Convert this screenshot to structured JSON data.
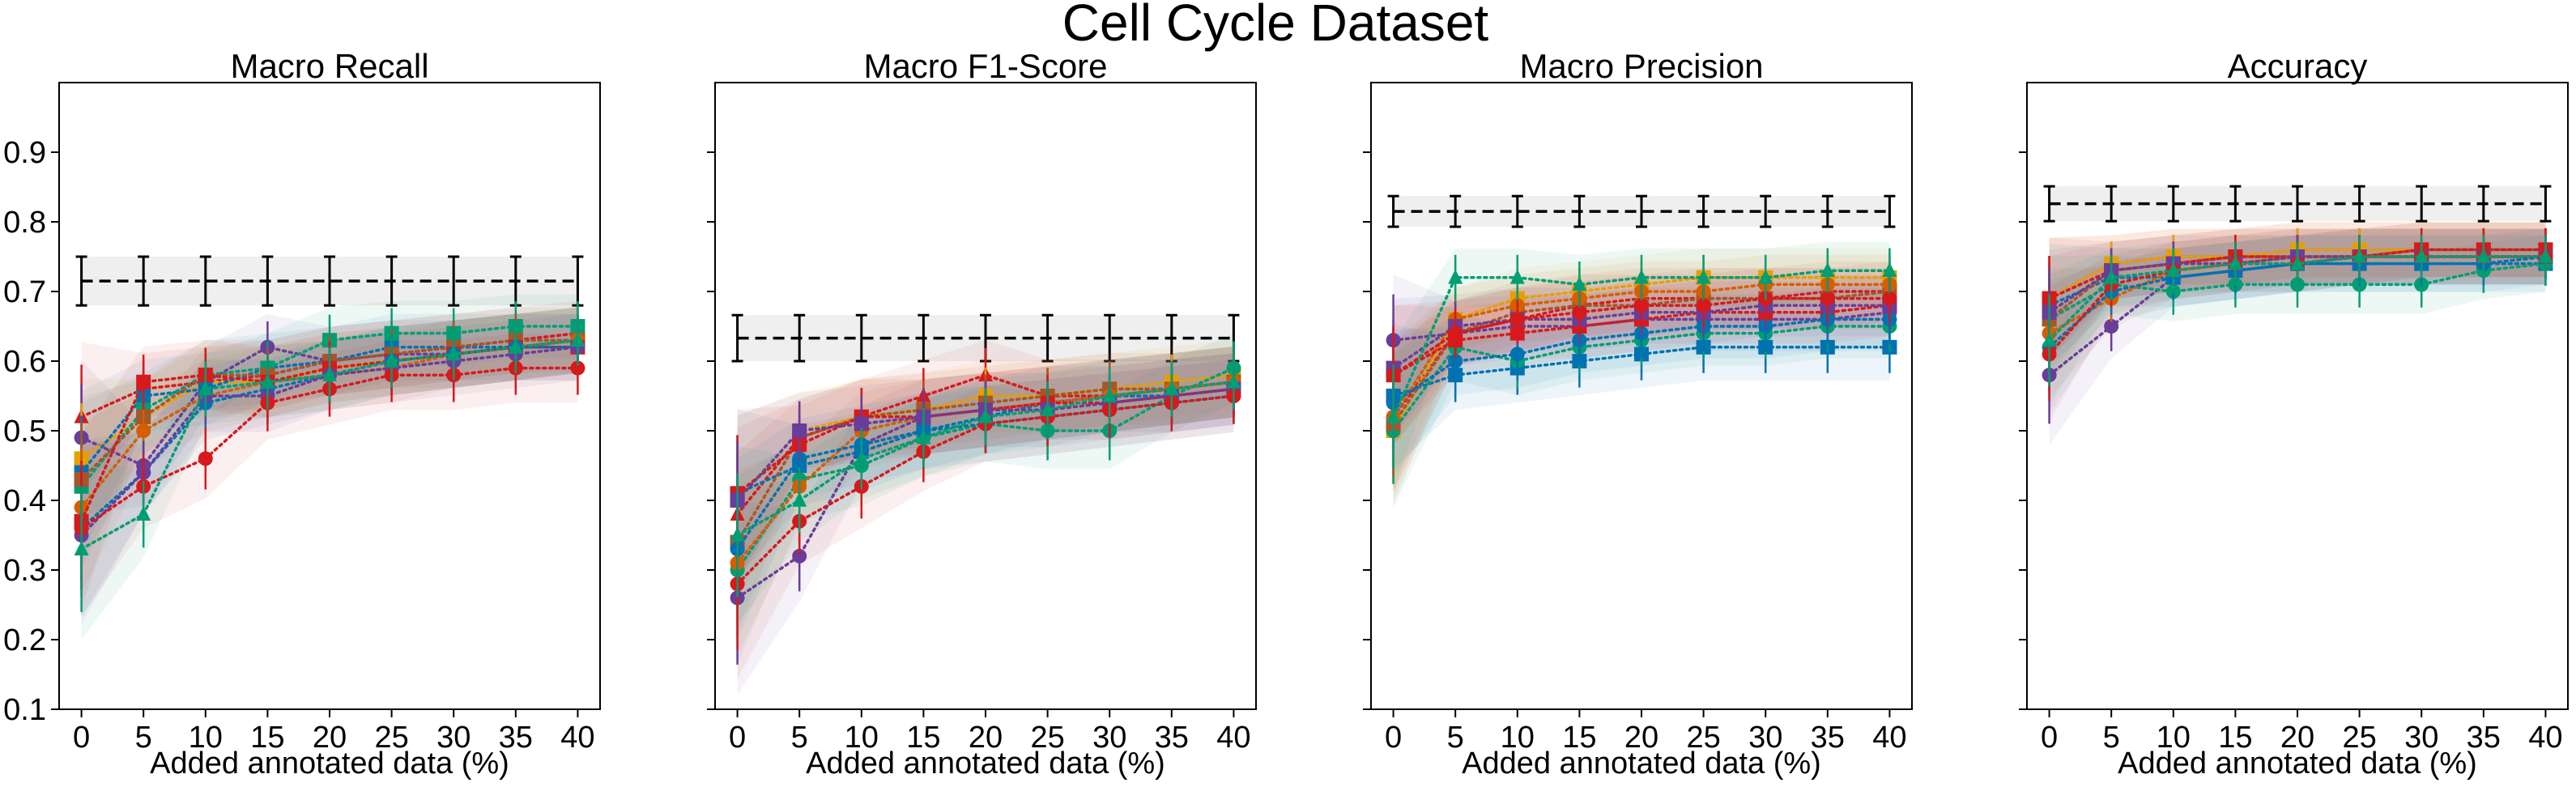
{
  "figure_title": "Cell Cycle Dataset",
  "chart_data": [
    {
      "type": "line",
      "title": "Macro Recall",
      "xlabel": "Added annotated data (%)",
      "ylabel": "",
      "x": [
        0,
        5,
        10,
        15,
        20,
        25,
        30,
        35,
        40
      ],
      "x_ticks": [
        "0",
        "5",
        "10",
        "15",
        "20",
        "25",
        "30",
        "35",
        "40"
      ],
      "ylim": [
        0.1,
        1.0
      ],
      "y_ticks": [
        "0.1",
        "0.2",
        "0.3",
        "0.4",
        "0.5",
        "0.6",
        "0.7",
        "0.8",
        "0.9"
      ],
      "baseline": {
        "value": 0.715,
        "err": 0.035
      },
      "series": [
        {
          "color": "#d7191c",
          "marker": "triangle",
          "values": [
            0.52,
            0.56,
            0.57,
            0.58,
            0.6,
            0.61,
            0.62,
            0.63,
            0.64
          ]
        },
        {
          "color": "#6a3d9a",
          "marker": "circle",
          "values": [
            0.49,
            0.45,
            0.57,
            0.62,
            0.6,
            0.61,
            0.61,
            0.62,
            0.63
          ]
        },
        {
          "color": "#e69f00",
          "marker": "square",
          "values": [
            0.46,
            0.52,
            0.57,
            0.57,
            0.59,
            0.6,
            0.61,
            0.62,
            0.63
          ]
        },
        {
          "color": "#0072b2",
          "marker": "square",
          "values": [
            0.44,
            0.55,
            0.56,
            0.59,
            0.6,
            0.62,
            0.62,
            0.62,
            0.63
          ]
        },
        {
          "color": "#009e73",
          "marker": "square",
          "values": [
            0.42,
            0.53,
            0.58,
            0.59,
            0.63,
            0.64,
            0.64,
            0.65,
            0.65
          ]
        },
        {
          "color": "#a65628",
          "marker": "square",
          "values": [
            0.43,
            0.52,
            0.58,
            0.58,
            0.6,
            0.61,
            0.62,
            0.63,
            0.63
          ]
        },
        {
          "color": "#d55e00",
          "marker": "circle",
          "values": [
            0.39,
            0.5,
            0.55,
            0.57,
            0.58,
            0.59,
            0.61,
            0.62,
            0.63
          ]
        },
        {
          "color": "#d7191c",
          "marker": "square",
          "values": [
            0.37,
            0.57,
            0.58,
            0.57,
            0.59,
            0.6,
            0.61,
            0.62,
            0.62
          ]
        },
        {
          "color": "#0072b2",
          "marker": "circle",
          "values": [
            0.36,
            0.44,
            0.54,
            0.56,
            0.58,
            0.6,
            0.61,
            0.62,
            0.62
          ]
        },
        {
          "color": "#6a3d9a",
          "marker": "circle",
          "values": [
            0.35,
            0.44,
            0.55,
            0.55,
            0.58,
            0.59,
            0.6,
            0.61,
            0.62
          ]
        },
        {
          "color": "#d7191c",
          "marker": "circle",
          "values": [
            0.36,
            0.42,
            0.46,
            0.54,
            0.56,
            0.58,
            0.58,
            0.59,
            0.59
          ]
        },
        {
          "color": "#009e73",
          "marker": "triangle",
          "values": [
            0.33,
            0.38,
            0.56,
            0.57,
            0.58,
            0.6,
            0.61,
            0.62,
            0.63
          ]
        }
      ]
    },
    {
      "type": "line",
      "title": "Macro F1-Score",
      "xlabel": "Added annotated data (%)",
      "ylabel": "",
      "x": [
        0,
        5,
        10,
        15,
        20,
        25,
        30,
        35,
        40
      ],
      "x_ticks": [
        "0",
        "5",
        "10",
        "15",
        "20",
        "25",
        "30",
        "35",
        "40"
      ],
      "ylim": [
        0.1,
        1.0
      ],
      "baseline": {
        "value": 0.633,
        "err": 0.033
      },
      "series": [
        {
          "color": "#d7191c",
          "marker": "triangle",
          "values": [
            0.38,
            0.49,
            0.52,
            0.55,
            0.58,
            0.55,
            0.55,
            0.56,
            0.57
          ]
        },
        {
          "color": "#6a3d9a",
          "marker": "circle",
          "values": [
            0.26,
            0.32,
            0.48,
            0.52,
            0.53,
            0.54,
            0.55,
            0.56,
            0.57
          ]
        },
        {
          "color": "#e69f00",
          "marker": "square",
          "values": [
            0.4,
            0.5,
            0.52,
            0.53,
            0.55,
            0.55,
            0.56,
            0.57,
            0.58
          ]
        },
        {
          "color": "#0072b2",
          "marker": "square",
          "values": [
            0.41,
            0.45,
            0.47,
            0.5,
            0.52,
            0.54,
            0.55,
            0.55,
            0.56
          ]
        },
        {
          "color": "#009e73",
          "marker": "circle",
          "values": [
            0.3,
            0.43,
            0.45,
            0.49,
            0.51,
            0.5,
            0.5,
            0.55,
            0.59
          ]
        },
        {
          "color": "#a65628",
          "marker": "square",
          "values": [
            0.34,
            0.49,
            0.52,
            0.53,
            0.54,
            0.55,
            0.56,
            0.56,
            0.57
          ]
        },
        {
          "color": "#d55e00",
          "marker": "circle",
          "values": [
            0.31,
            0.42,
            0.5,
            0.52,
            0.53,
            0.54,
            0.55,
            0.56,
            0.57
          ]
        },
        {
          "color": "#d7191c",
          "marker": "square",
          "values": [
            0.41,
            0.48,
            0.52,
            0.52,
            0.53,
            0.54,
            0.54,
            0.55,
            0.56
          ]
        },
        {
          "color": "#0072b2",
          "marker": "circle",
          "values": [
            0.33,
            0.46,
            0.48,
            0.5,
            0.51,
            0.52,
            0.53,
            0.54,
            0.55
          ]
        },
        {
          "color": "#6a3d9a",
          "marker": "square",
          "values": [
            0.4,
            0.5,
            0.51,
            0.52,
            0.53,
            0.53,
            0.54,
            0.55,
            0.56
          ]
        },
        {
          "color": "#d7191c",
          "marker": "circle",
          "values": [
            0.28,
            0.37,
            0.42,
            0.47,
            0.51,
            0.52,
            0.53,
            0.54,
            0.55
          ]
        },
        {
          "color": "#009e73",
          "marker": "triangle",
          "values": [
            0.35,
            0.4,
            0.46,
            0.49,
            0.52,
            0.53,
            0.55,
            0.56,
            0.57
          ]
        }
      ]
    },
    {
      "type": "line",
      "title": "Macro Precision",
      "xlabel": "Added annotated data (%)",
      "ylabel": "",
      "x": [
        0,
        5,
        10,
        15,
        20,
        25,
        30,
        35,
        40
      ],
      "x_ticks": [
        "0",
        "5",
        "10",
        "15",
        "20",
        "25",
        "30",
        "35",
        "40"
      ],
      "ylim": [
        0.1,
        1.0
      ],
      "baseline": {
        "value": 0.815,
        "err": 0.022
      },
      "series": [
        {
          "color": "#d7191c",
          "marker": "triangle",
          "values": [
            0.52,
            0.64,
            0.66,
            0.68,
            0.69,
            0.69,
            0.69,
            0.7,
            0.7
          ]
        },
        {
          "color": "#6a3d9a",
          "marker": "circle",
          "values": [
            0.63,
            0.64,
            0.65,
            0.65,
            0.66,
            0.66,
            0.66,
            0.66,
            0.67
          ]
        },
        {
          "color": "#e69f00",
          "marker": "square",
          "values": [
            0.5,
            0.66,
            0.69,
            0.7,
            0.71,
            0.72,
            0.72,
            0.72,
            0.72
          ]
        },
        {
          "color": "#0072b2",
          "marker": "square",
          "values": [
            0.55,
            0.58,
            0.59,
            0.6,
            0.61,
            0.62,
            0.62,
            0.62,
            0.62
          ]
        },
        {
          "color": "#009e73",
          "marker": "circle",
          "values": [
            0.5,
            0.62,
            0.6,
            0.62,
            0.63,
            0.64,
            0.64,
            0.65,
            0.65
          ]
        },
        {
          "color": "#a65628",
          "marker": "square",
          "values": [
            0.51,
            0.64,
            0.67,
            0.68,
            0.68,
            0.69,
            0.69,
            0.69,
            0.7
          ]
        },
        {
          "color": "#d55e00",
          "marker": "circle",
          "values": [
            0.52,
            0.66,
            0.68,
            0.69,
            0.7,
            0.7,
            0.71,
            0.71,
            0.71
          ]
        },
        {
          "color": "#d7191c",
          "marker": "square",
          "values": [
            0.58,
            0.63,
            0.64,
            0.65,
            0.66,
            0.67,
            0.67,
            0.67,
            0.68
          ]
        },
        {
          "color": "#0072b2",
          "marker": "circle",
          "values": [
            0.54,
            0.6,
            0.61,
            0.63,
            0.64,
            0.65,
            0.65,
            0.66,
            0.66
          ]
        },
        {
          "color": "#6a3d9a",
          "marker": "square",
          "values": [
            0.59,
            0.65,
            0.66,
            0.66,
            0.67,
            0.67,
            0.68,
            0.68,
            0.68
          ]
        },
        {
          "color": "#d7191c",
          "marker": "circle",
          "values": [
            0.58,
            0.64,
            0.66,
            0.67,
            0.68,
            0.68,
            0.69,
            0.69,
            0.69
          ]
        },
        {
          "color": "#009e73",
          "marker": "triangle",
          "values": [
            0.52,
            0.72,
            0.72,
            0.71,
            0.72,
            0.72,
            0.72,
            0.73,
            0.73
          ]
        }
      ]
    },
    {
      "type": "line",
      "title": "Accuracy",
      "xlabel": "Added annotated data (%)",
      "ylabel": "",
      "x": [
        0,
        5,
        10,
        15,
        20,
        25,
        30,
        35,
        40
      ],
      "x_ticks": [
        "0",
        "5",
        "10",
        "15",
        "20",
        "25",
        "30",
        "35",
        "40"
      ],
      "ylim": [
        0.1,
        1.0
      ],
      "baseline": {
        "value": 0.826,
        "err": 0.025
      },
      "series": [
        {
          "color": "#d7191c",
          "marker": "triangle",
          "values": [
            0.69,
            0.74,
            0.75,
            0.75,
            0.76,
            0.76,
            0.76,
            0.76,
            0.76
          ]
        },
        {
          "color": "#6a3d9a",
          "marker": "circle",
          "values": [
            0.58,
            0.65,
            0.72,
            0.73,
            0.74,
            0.75,
            0.75,
            0.75,
            0.75
          ]
        },
        {
          "color": "#e69f00",
          "marker": "square",
          "values": [
            0.69,
            0.74,
            0.75,
            0.75,
            0.76,
            0.76,
            0.76,
            0.76,
            0.76
          ]
        },
        {
          "color": "#0072b2",
          "marker": "square",
          "values": [
            0.68,
            0.72,
            0.72,
            0.73,
            0.74,
            0.74,
            0.74,
            0.74,
            0.74
          ]
        },
        {
          "color": "#009e73",
          "marker": "circle",
          "values": [
            0.66,
            0.71,
            0.7,
            0.71,
            0.71,
            0.71,
            0.71,
            0.73,
            0.74
          ]
        },
        {
          "color": "#a65628",
          "marker": "square",
          "values": [
            0.66,
            0.73,
            0.74,
            0.75,
            0.75,
            0.75,
            0.76,
            0.76,
            0.76
          ]
        },
        {
          "color": "#d55e00",
          "marker": "circle",
          "values": [
            0.64,
            0.69,
            0.73,
            0.74,
            0.75,
            0.75,
            0.75,
            0.75,
            0.75
          ]
        },
        {
          "color": "#d7191c",
          "marker": "square",
          "values": [
            0.69,
            0.73,
            0.74,
            0.75,
            0.75,
            0.75,
            0.76,
            0.76,
            0.76
          ]
        },
        {
          "color": "#0072b2",
          "marker": "circle",
          "values": [
            0.62,
            0.7,
            0.72,
            0.73,
            0.74,
            0.74,
            0.74,
            0.74,
            0.75
          ]
        },
        {
          "color": "#6a3d9a",
          "marker": "square",
          "values": [
            0.67,
            0.73,
            0.74,
            0.74,
            0.75,
            0.75,
            0.75,
            0.75,
            0.75
          ]
        },
        {
          "color": "#d7191c",
          "marker": "circle",
          "values": [
            0.61,
            0.71,
            0.73,
            0.74,
            0.74,
            0.75,
            0.75,
            0.75,
            0.75
          ]
        },
        {
          "color": "#009e73",
          "marker": "triangle",
          "values": [
            0.63,
            0.72,
            0.73,
            0.74,
            0.74,
            0.75,
            0.75,
            0.75,
            0.75
          ]
        }
      ]
    }
  ]
}
